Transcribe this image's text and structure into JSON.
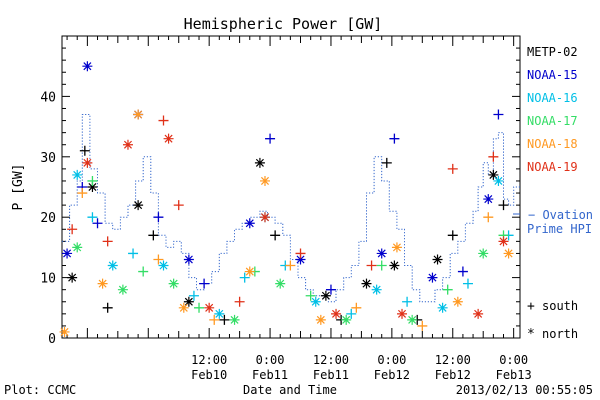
{
  "chart_data": {
    "type": "scatter",
    "title": "Hemispheric Power [GW]",
    "xlabel": "Date and Time",
    "ylabel": "P [GW]",
    "ylim": [
      0,
      50
    ],
    "xlim": [
      "2013-02-09 07:00",
      "2013-02-13 01:15"
    ],
    "y_ticks": [
      "0",
      "10",
      "20",
      "30",
      "40"
    ],
    "x_ticks": [
      {
        "time": "12:00",
        "date": "Feb10",
        "at": "2013-02-10 12:00"
      },
      {
        "time": "0:00",
        "date": "Feb11",
        "at": "2013-02-11 00:00"
      },
      {
        "time": "12:00",
        "date": "Feb11",
        "at": "2013-02-11 12:00"
      },
      {
        "time": "0:00",
        "date": "Feb12",
        "at": "2013-02-12 00:00"
      },
      {
        "time": "12:00",
        "date": "Feb12",
        "at": "2013-02-12 12:00"
      },
      {
        "time": "0:00",
        "date": "Feb13",
        "at": "2013-02-13 00:00"
      }
    ],
    "legend_position": "right",
    "series": [
      {
        "name": "METP-02",
        "color": "#000000",
        "points": [
          {
            "x": "2013-02-09 09:00",
            "y": 10,
            "hemi": "north"
          },
          {
            "x": "2013-02-09 11:30",
            "y": 31,
            "hemi": "south"
          },
          {
            "x": "2013-02-09 13:00",
            "y": 25,
            "hemi": "north"
          },
          {
            "x": "2013-02-09 16:00",
            "y": 5,
            "hemi": "south"
          },
          {
            "x": "2013-02-09 22:00",
            "y": 22,
            "hemi": "north"
          },
          {
            "x": "2013-02-10 01:00",
            "y": 17,
            "hemi": "south"
          },
          {
            "x": "2013-02-10 08:00",
            "y": 6,
            "hemi": "north"
          },
          {
            "x": "2013-02-10 15:00",
            "y": 3,
            "hemi": "south"
          },
          {
            "x": "2013-02-10 22:00",
            "y": 29,
            "hemi": "north"
          },
          {
            "x": "2013-02-11 01:00",
            "y": 17,
            "hemi": "south"
          },
          {
            "x": "2013-02-11 11:00",
            "y": 7,
            "hemi": "north"
          },
          {
            "x": "2013-02-11 14:00",
            "y": 3,
            "hemi": "south"
          },
          {
            "x": "2013-02-11 19:00",
            "y": 9,
            "hemi": "north"
          },
          {
            "x": "2013-02-11 23:00",
            "y": 29,
            "hemi": "south"
          },
          {
            "x": "2013-02-12 00:30",
            "y": 12,
            "hemi": "north"
          },
          {
            "x": "2013-02-12 05:00",
            "y": 3,
            "hemi": "south"
          },
          {
            "x": "2013-02-12 09:00",
            "y": 13,
            "hemi": "north"
          },
          {
            "x": "2013-02-12 12:00",
            "y": 17,
            "hemi": "south"
          },
          {
            "x": "2013-02-12 20:00",
            "y": 27,
            "hemi": "north"
          },
          {
            "x": "2013-02-12 22:00",
            "y": 22,
            "hemi": "south"
          }
        ]
      },
      {
        "name": "NOAA-15",
        "color": "#0000cc",
        "points": [
          {
            "x": "2013-02-09 08:00",
            "y": 14,
            "hemi": "north"
          },
          {
            "x": "2013-02-09 11:00",
            "y": 25,
            "hemi": "south"
          },
          {
            "x": "2013-02-09 12:00",
            "y": 45,
            "hemi": "north"
          },
          {
            "x": "2013-02-09 14:00",
            "y": 19,
            "hemi": "south"
          },
          {
            "x": "2013-02-09 22:00",
            "y": 37,
            "hemi": "north"
          },
          {
            "x": "2013-02-10 02:00",
            "y": 20,
            "hemi": "south"
          },
          {
            "x": "2013-02-10 08:00",
            "y": 13,
            "hemi": "north"
          },
          {
            "x": "2013-02-10 11:00",
            "y": 9,
            "hemi": "south"
          },
          {
            "x": "2013-02-10 20:00",
            "y": 19,
            "hemi": "north"
          },
          {
            "x": "2013-02-11 00:00",
            "y": 33,
            "hemi": "south"
          },
          {
            "x": "2013-02-11 06:00",
            "y": 13,
            "hemi": "north"
          },
          {
            "x": "2013-02-11 12:00",
            "y": 8,
            "hemi": "south"
          },
          {
            "x": "2013-02-11 22:00",
            "y": 14,
            "hemi": "north"
          },
          {
            "x": "2013-02-12 00:30",
            "y": 33,
            "hemi": "south"
          },
          {
            "x": "2013-02-12 08:00",
            "y": 10,
            "hemi": "north"
          },
          {
            "x": "2013-02-12 14:00",
            "y": 11,
            "hemi": "south"
          },
          {
            "x": "2013-02-12 19:00",
            "y": 23,
            "hemi": "north"
          },
          {
            "x": "2013-02-12 21:00",
            "y": 37,
            "hemi": "south"
          }
        ]
      },
      {
        "name": "NOAA-16",
        "color": "#00bfe6",
        "points": [
          {
            "x": "2013-02-09 10:00",
            "y": 27,
            "hemi": "north"
          },
          {
            "x": "2013-02-09 13:00",
            "y": 20,
            "hemi": "south"
          },
          {
            "x": "2013-02-09 17:00",
            "y": 12,
            "hemi": "north"
          },
          {
            "x": "2013-02-09 21:00",
            "y": 14,
            "hemi": "south"
          },
          {
            "x": "2013-02-10 03:00",
            "y": 12,
            "hemi": "north"
          },
          {
            "x": "2013-02-10 09:00",
            "y": 7,
            "hemi": "south"
          },
          {
            "x": "2013-02-10 14:00",
            "y": 4,
            "hemi": "north"
          },
          {
            "x": "2013-02-10 19:00",
            "y": 10,
            "hemi": "south"
          },
          {
            "x": "2013-02-10 23:00",
            "y": 20,
            "hemi": "north"
          },
          {
            "x": "2013-02-11 03:00",
            "y": 12,
            "hemi": "south"
          },
          {
            "x": "2013-02-11 09:00",
            "y": 6,
            "hemi": "north"
          },
          {
            "x": "2013-02-11 16:00",
            "y": 4,
            "hemi": "south"
          },
          {
            "x": "2013-02-11 21:00",
            "y": 8,
            "hemi": "north"
          },
          {
            "x": "2013-02-12 03:00",
            "y": 6,
            "hemi": "south"
          },
          {
            "x": "2013-02-12 10:00",
            "y": 5,
            "hemi": "north"
          },
          {
            "x": "2013-02-12 15:00",
            "y": 9,
            "hemi": "south"
          },
          {
            "x": "2013-02-12 21:00",
            "y": 26,
            "hemi": "north"
          },
          {
            "x": "2013-02-12 23:00",
            "y": 17,
            "hemi": "south"
          }
        ]
      },
      {
        "name": "NOAA-17",
        "color": "#33dd66",
        "points": [
          {
            "x": "2013-02-09 10:00",
            "y": 15,
            "hemi": "north"
          },
          {
            "x": "2013-02-09 13:00",
            "y": 26,
            "hemi": "south"
          },
          {
            "x": "2013-02-09 19:00",
            "y": 8,
            "hemi": "north"
          },
          {
            "x": "2013-02-09 23:00",
            "y": 11,
            "hemi": "south"
          },
          {
            "x": "2013-02-10 05:00",
            "y": 9,
            "hemi": "north"
          },
          {
            "x": "2013-02-10 10:00",
            "y": 5,
            "hemi": "south"
          },
          {
            "x": "2013-02-10 17:00",
            "y": 3,
            "hemi": "north"
          },
          {
            "x": "2013-02-10 21:00",
            "y": 11,
            "hemi": "south"
          },
          {
            "x": "2013-02-11 02:00",
            "y": 9,
            "hemi": "north"
          },
          {
            "x": "2013-02-11 08:00",
            "y": 7,
            "hemi": "south"
          },
          {
            "x": "2013-02-11 15:00",
            "y": 3,
            "hemi": "north"
          },
          {
            "x": "2013-02-11 22:00",
            "y": 12,
            "hemi": "south"
          },
          {
            "x": "2013-02-12 04:00",
            "y": 3,
            "hemi": "north"
          },
          {
            "x": "2013-02-12 11:00",
            "y": 8,
            "hemi": "south"
          },
          {
            "x": "2013-02-12 18:00",
            "y": 14,
            "hemi": "north"
          },
          {
            "x": "2013-02-12 22:00",
            "y": 17,
            "hemi": "south"
          }
        ]
      },
      {
        "name": "NOAA-18",
        "color": "#ff9922",
        "points": [
          {
            "x": "2013-02-09 07:30",
            "y": 1,
            "hemi": "north"
          },
          {
            "x": "2013-02-09 11:00",
            "y": 24,
            "hemi": "south"
          },
          {
            "x": "2013-02-09 15:00",
            "y": 9,
            "hemi": "north"
          },
          {
            "x": "2013-02-09 22:00",
            "y": 37,
            "hemi": "north"
          },
          {
            "x": "2013-02-10 02:00",
            "y": 13,
            "hemi": "south"
          },
          {
            "x": "2013-02-10 07:00",
            "y": 5,
            "hemi": "north"
          },
          {
            "x": "2013-02-10 13:00",
            "y": 3,
            "hemi": "south"
          },
          {
            "x": "2013-02-10 20:00",
            "y": 11,
            "hemi": "north"
          },
          {
            "x": "2013-02-10 23:00",
            "y": 26,
            "hemi": "north"
          },
          {
            "x": "2013-02-11 04:00",
            "y": 12,
            "hemi": "south"
          },
          {
            "x": "2013-02-11 10:00",
            "y": 3,
            "hemi": "north"
          },
          {
            "x": "2013-02-11 17:00",
            "y": 5,
            "hemi": "south"
          },
          {
            "x": "2013-02-12 01:00",
            "y": 15,
            "hemi": "north"
          },
          {
            "x": "2013-02-12 06:00",
            "y": 2,
            "hemi": "south"
          },
          {
            "x": "2013-02-12 13:00",
            "y": 6,
            "hemi": "north"
          },
          {
            "x": "2013-02-12 19:00",
            "y": 20,
            "hemi": "south"
          },
          {
            "x": "2013-02-12 23:00",
            "y": 14,
            "hemi": "north"
          }
        ]
      },
      {
        "name": "NOAA-19",
        "color": "#e03018",
        "points": [
          {
            "x": "2013-02-09 09:00",
            "y": 18,
            "hemi": "south"
          },
          {
            "x": "2013-02-09 12:00",
            "y": 29,
            "hemi": "north"
          },
          {
            "x": "2013-02-09 16:00",
            "y": 16,
            "hemi": "south"
          },
          {
            "x": "2013-02-09 20:00",
            "y": 32,
            "hemi": "north"
          },
          {
            "x": "2013-02-10 03:00",
            "y": 36,
            "hemi": "south"
          },
          {
            "x": "2013-02-10 04:00",
            "y": 33,
            "hemi": "north"
          },
          {
            "x": "2013-02-10 06:00",
            "y": 22,
            "hemi": "south"
          },
          {
            "x": "2013-02-10 12:00",
            "y": 5,
            "hemi": "north"
          },
          {
            "x": "2013-02-10 18:00",
            "y": 6,
            "hemi": "south"
          },
          {
            "x": "2013-02-10 23:00",
            "y": 20,
            "hemi": "north"
          },
          {
            "x": "2013-02-11 06:00",
            "y": 14,
            "hemi": "south"
          },
          {
            "x": "2013-02-11 13:00",
            "y": 4,
            "hemi": "north"
          },
          {
            "x": "2013-02-11 20:00",
            "y": 12,
            "hemi": "south"
          },
          {
            "x": "2013-02-12 02:00",
            "y": 4,
            "hemi": "north"
          },
          {
            "x": "2013-02-12 12:00",
            "y": 28,
            "hemi": "south"
          },
          {
            "x": "2013-02-12 17:00",
            "y": 4,
            "hemi": "north"
          },
          {
            "x": "2013-02-12 20:00",
            "y": 30,
            "hemi": "south"
          },
          {
            "x": "2013-02-12 22:00",
            "y": 16,
            "hemi": "north"
          }
        ]
      }
    ],
    "ovation": {
      "label_line1": "Ovation",
      "label_line2": "Prime HPI",
      "color": "#3366cc",
      "style": "dotted-step",
      "x": [
        "2013-02-09 07:00",
        "2013-02-09 08:30",
        "2013-02-09 10:00",
        "2013-02-09 11:00",
        "2013-02-09 12:30",
        "2013-02-09 14:00",
        "2013-02-09 15:30",
        "2013-02-09 17:00",
        "2013-02-09 18:30",
        "2013-02-09 20:00",
        "2013-02-09 21:30",
        "2013-02-09 23:00",
        "2013-02-10 00:30",
        "2013-02-10 02:00",
        "2013-02-10 03:30",
        "2013-02-10 05:00",
        "2013-02-10 06:30",
        "2013-02-10 08:00",
        "2013-02-10 09:30",
        "2013-02-10 11:00",
        "2013-02-10 12:30",
        "2013-02-10 14:00",
        "2013-02-10 15:30",
        "2013-02-10 17:00",
        "2013-02-10 18:30",
        "2013-02-10 20:00",
        "2013-02-10 21:00",
        "2013-02-10 22:00",
        "2013-02-10 23:30",
        "2013-02-11 01:00",
        "2013-02-11 02:30",
        "2013-02-11 04:00",
        "2013-02-11 05:30",
        "2013-02-11 07:00",
        "2013-02-11 08:30",
        "2013-02-11 10:00",
        "2013-02-11 11:30",
        "2013-02-11 13:00",
        "2013-02-11 14:30",
        "2013-02-11 16:00",
        "2013-02-11 17:30",
        "2013-02-11 19:00",
        "2013-02-11 20:30",
        "2013-02-11 22:00",
        "2013-02-11 23:30",
        "2013-02-12 01:00",
        "2013-02-12 02:30",
        "2013-02-12 04:00",
        "2013-02-12 05:30",
        "2013-02-12 07:00",
        "2013-02-12 08:30",
        "2013-02-12 10:00",
        "2013-02-12 11:30",
        "2013-02-12 13:00",
        "2013-02-12 14:30",
        "2013-02-12 16:00",
        "2013-02-12 17:00",
        "2013-02-12 18:00",
        "2013-02-12 19:00",
        "2013-02-12 20:00",
        "2013-02-12 21:00",
        "2013-02-12 22:00",
        "2013-02-12 23:00",
        "2013-02-13 00:00",
        "2013-02-13 01:00"
      ],
      "y": [
        16,
        22,
        26,
        37,
        28,
        24,
        19,
        18,
        20,
        22,
        26,
        30,
        24,
        17,
        15,
        16,
        14,
        10,
        8,
        9,
        11,
        14,
        16,
        18,
        19,
        20,
        20,
        21,
        20,
        19,
        17,
        13,
        10,
        8,
        7,
        7,
        6,
        8,
        10,
        12,
        16,
        24,
        30,
        26,
        21,
        18,
        12,
        8,
        6,
        6,
        8,
        10,
        14,
        16,
        19,
        21,
        25,
        29,
        27,
        33,
        34,
        23,
        22,
        25,
        25
      ]
    },
    "legend_symbols": [
      {
        "glyph": "+",
        "label": "south"
      },
      {
        "glyph": "*",
        "label": "north"
      }
    ]
  },
  "footer": {
    "plot_label": "Plot: CCMC",
    "timestamp": "2013/02/13 00:55:05"
  }
}
